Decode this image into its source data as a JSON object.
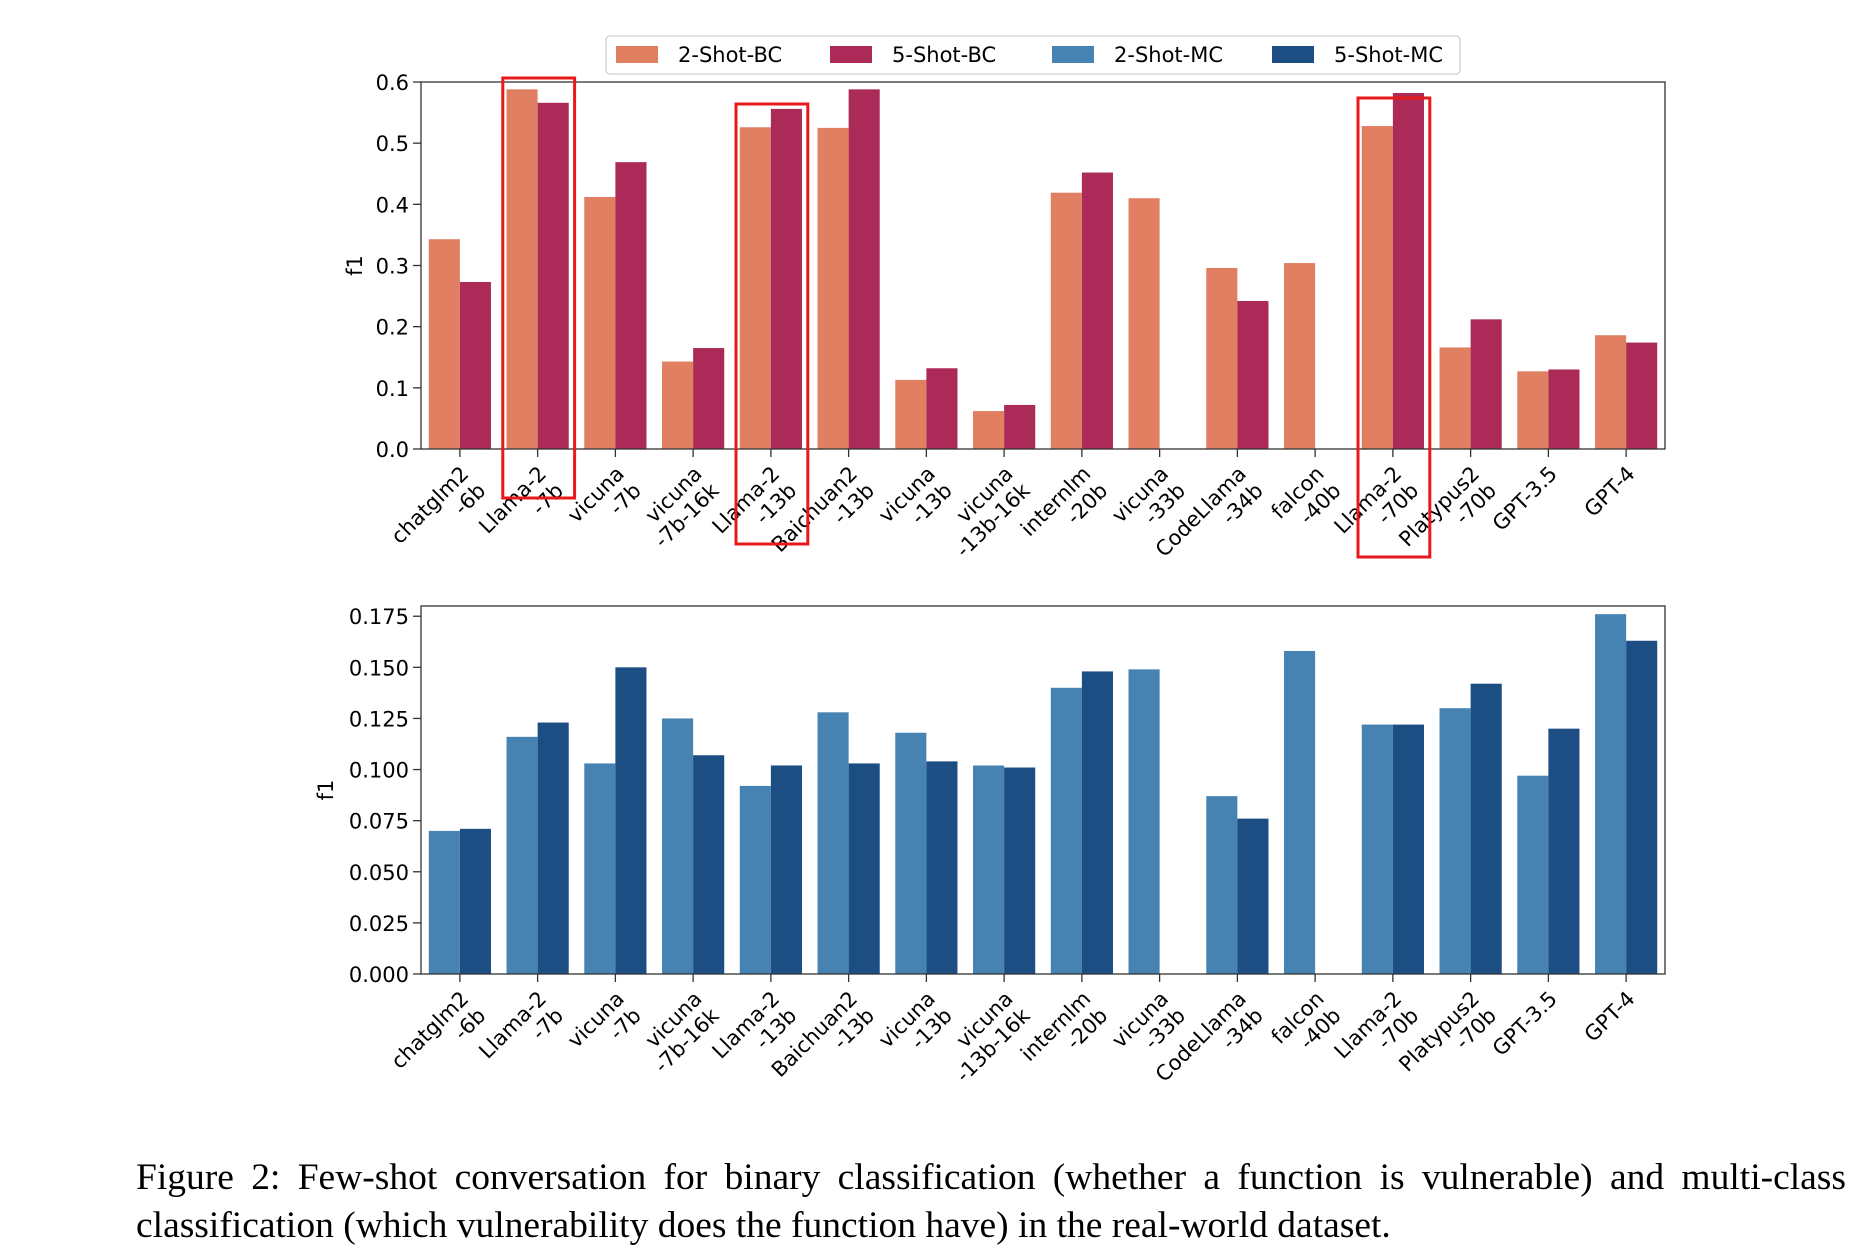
{
  "caption": {
    "prefix": "Figure 2:",
    "text": "Few-shot conversation for binary classification (whether a function is vulnerable) and multi-class classification (which vulnerability does the function have) in the real-world dataset."
  },
  "colors": {
    "2-Shot-BC": "#e07f62",
    "5-Shot-BC": "#ab2a58",
    "2-Shot-MC": "#4683b3",
    "5-Shot-MC": "#1c4e84",
    "highlight": "#e8191b"
  },
  "legend": [
    "2-Shot-BC",
    "5-Shot-BC",
    "2-Shot-MC",
    "5-Shot-MC"
  ],
  "chart_data": [
    {
      "type": "bar",
      "ylabel": "f1",
      "ylim": [
        0,
        0.6
      ],
      "yticks": [
        "0.0",
        "0.1",
        "0.2",
        "0.3",
        "0.4",
        "0.5",
        "0.6"
      ],
      "categories": [
        "chatglm2\n-6b",
        "Llama-2\n-7b",
        "vicuna\n-7b",
        "vicuna\n-7b-16k",
        "Llama-2\n-13b",
        "Baichuan2\n-13b",
        "vicuna\n-13b",
        "vicuna\n-13b-16k",
        "internlm\n-20b",
        "vicuna\n-33b",
        "CodeLlama\n-34b",
        "falcon\n-40b",
        "Llama-2\n-70b",
        "Platypus2\n-70b",
        "GPT-3.5",
        "GPT-4"
      ],
      "series": [
        {
          "name": "2-Shot-BC",
          "values": [
            0.343,
            0.588,
            0.412,
            0.143,
            0.526,
            0.525,
            0.113,
            0.062,
            0.419,
            0.41,
            0.296,
            0.304,
            0.528,
            0.166,
            0.127,
            0.186
          ]
        },
        {
          "name": "5-Shot-BC",
          "values": [
            0.273,
            0.566,
            0.469,
            0.165,
            0.556,
            0.588,
            0.132,
            0.072,
            0.452,
            null,
            0.242,
            null,
            0.582,
            0.212,
            0.13,
            0.174
          ]
        }
      ],
      "highlighted_categories": [
        1,
        4,
        12
      ],
      "grid": false
    },
    {
      "type": "bar",
      "ylabel": "f1",
      "ylim": [
        0,
        0.18
      ],
      "yticks": [
        "0.000",
        "0.025",
        "0.050",
        "0.075",
        "0.100",
        "0.125",
        "0.150",
        "0.175"
      ],
      "categories": [
        "chatglm2\n-6b",
        "Llama-2\n-7b",
        "vicuna\n-7b",
        "vicuna\n-7b-16k",
        "Llama-2\n-13b",
        "Baichuan2\n-13b",
        "vicuna\n-13b",
        "vicuna\n-13b-16k",
        "internlm\n-20b",
        "vicuna\n-33b",
        "CodeLlama\n-34b",
        "falcon\n-40b",
        "Llama-2\n-70b",
        "Platypus2\n-70b",
        "GPT-3.5",
        "GPT-4"
      ],
      "series": [
        {
          "name": "2-Shot-MC",
          "values": [
            0.07,
            0.116,
            0.103,
            0.125,
            0.092,
            0.128,
            0.118,
            0.102,
            0.14,
            0.149,
            0.087,
            0.158,
            0.122,
            0.13,
            0.097,
            0.176
          ]
        },
        {
          "name": "5-Shot-MC",
          "values": [
            0.071,
            0.123,
            0.15,
            0.107,
            0.102,
            0.103,
            0.104,
            0.101,
            0.148,
            null,
            0.076,
            null,
            0.122,
            0.142,
            0.12,
            0.163
          ]
        }
      ],
      "grid": false
    }
  ]
}
